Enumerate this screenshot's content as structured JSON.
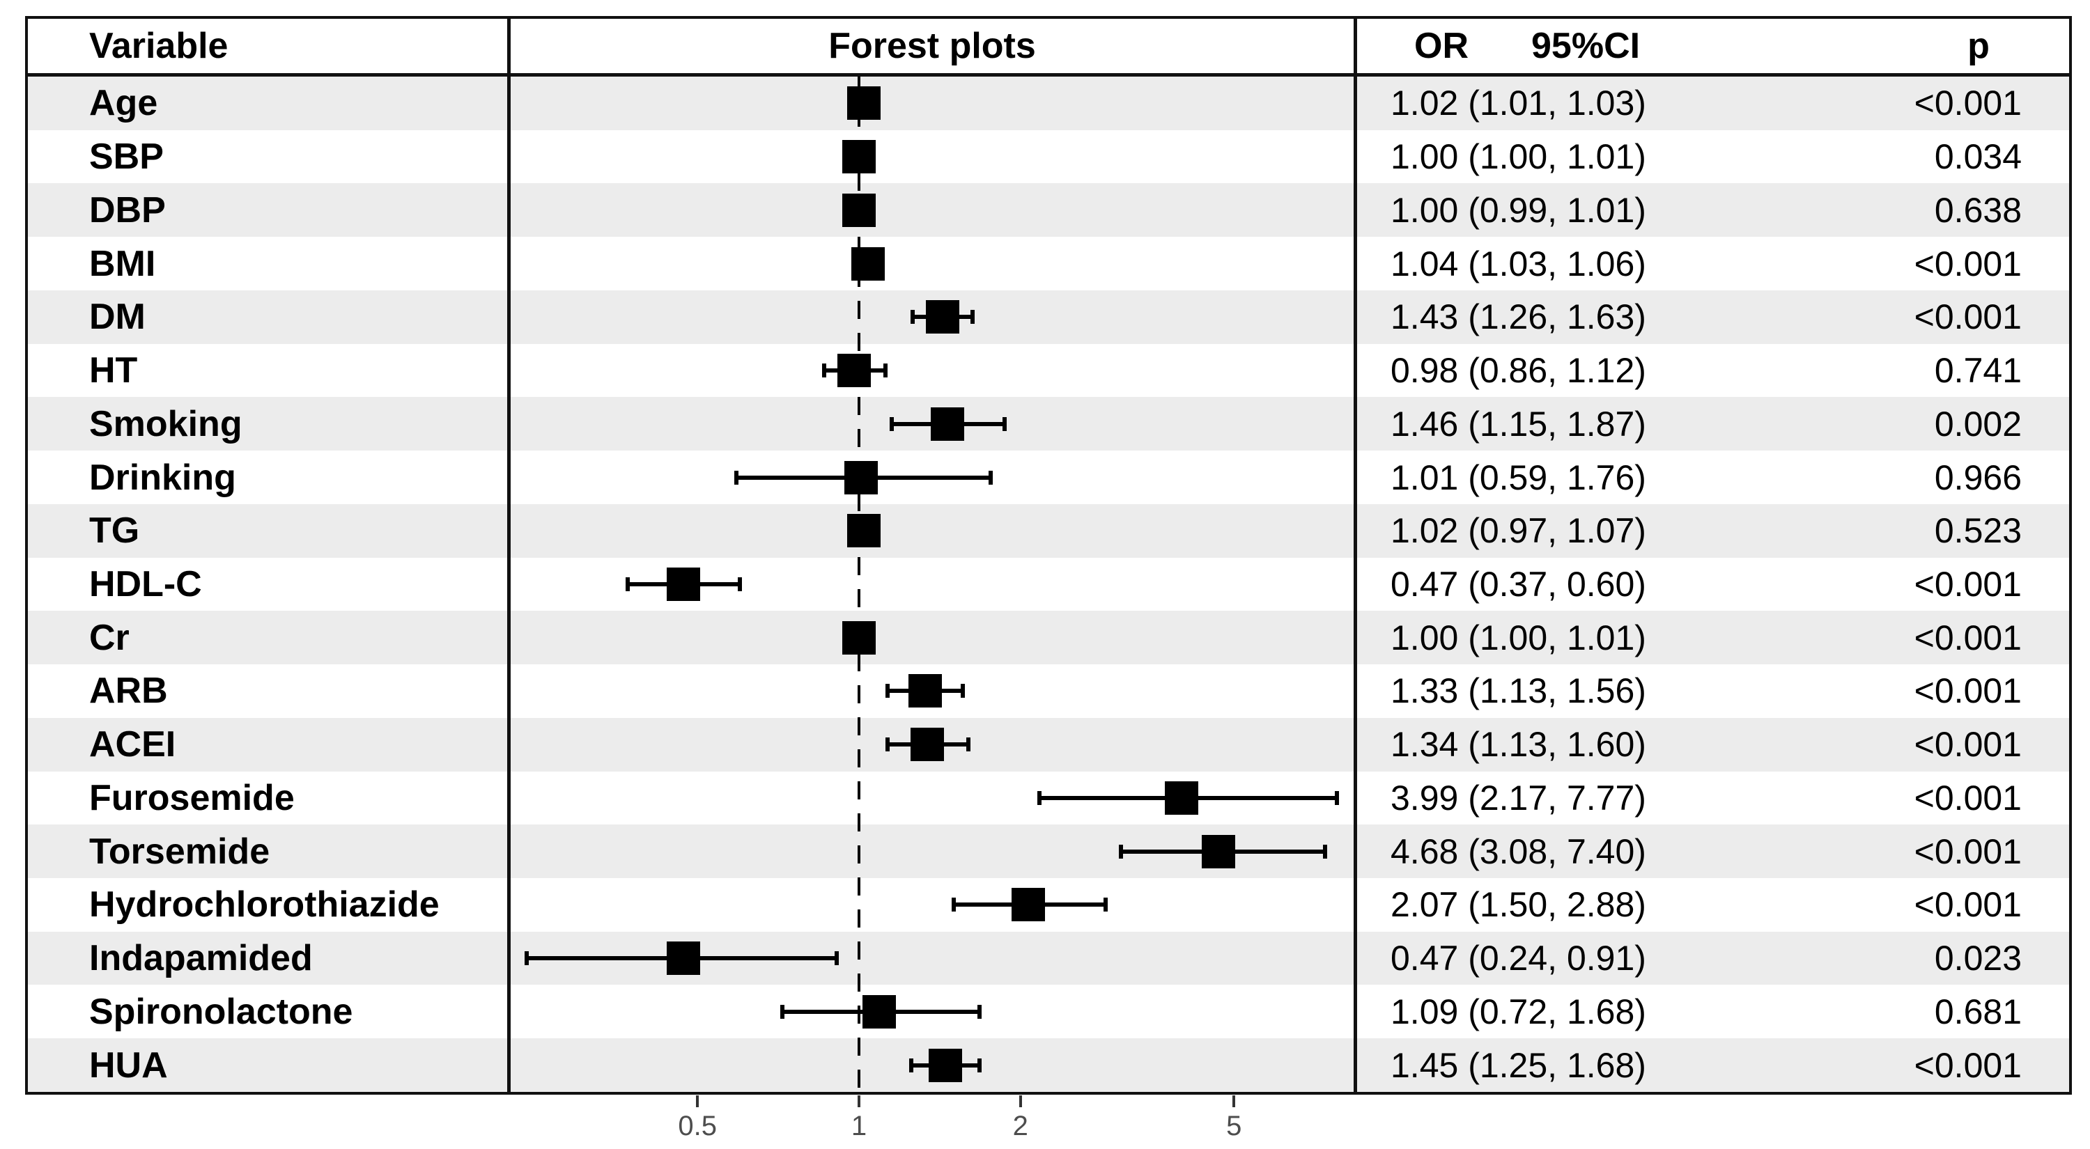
{
  "table": {
    "headers": {
      "variable": "Variable",
      "forest": "Forest plots",
      "or": "OR",
      "ci": "95%CI",
      "p": "p"
    }
  },
  "chart_data": {
    "type": "scatter",
    "subtype": "forest-plot",
    "title": "Forest plots",
    "x_scale": "log10",
    "x_ticks": [
      "0.5",
      "1",
      "2",
      "5"
    ],
    "x_range": [
      0.22,
      9.5
    ],
    "reference_line": 1,
    "legend": "none",
    "rows": [
      {
        "variable": "Age",
        "or": 1.02,
        "ci_low": 1.01,
        "ci_high": 1.03,
        "or_ci": "1.02 (1.01, 1.03)",
        "p": "<0.001"
      },
      {
        "variable": "SBP",
        "or": 1.0,
        "ci_low": 1.0,
        "ci_high": 1.01,
        "or_ci": "1.00 (1.00, 1.01)",
        "p": "0.034"
      },
      {
        "variable": "DBP",
        "or": 1.0,
        "ci_low": 0.99,
        "ci_high": 1.01,
        "or_ci": "1.00 (0.99, 1.01)",
        "p": "0.638"
      },
      {
        "variable": "BMI",
        "or": 1.04,
        "ci_low": 1.03,
        "ci_high": 1.06,
        "or_ci": "1.04 (1.03, 1.06)",
        "p": "<0.001"
      },
      {
        "variable": "DM",
        "or": 1.43,
        "ci_low": 1.26,
        "ci_high": 1.63,
        "or_ci": "1.43 (1.26, 1.63)",
        "p": "<0.001"
      },
      {
        "variable": "HT",
        "or": 0.98,
        "ci_low": 0.86,
        "ci_high": 1.12,
        "or_ci": "0.98 (0.86, 1.12)",
        "p": "0.741"
      },
      {
        "variable": "Smoking",
        "or": 1.46,
        "ci_low": 1.15,
        "ci_high": 1.87,
        "or_ci": "1.46 (1.15, 1.87)",
        "p": "0.002"
      },
      {
        "variable": "Drinking",
        "or": 1.01,
        "ci_low": 0.59,
        "ci_high": 1.76,
        "or_ci": "1.01 (0.59, 1.76)",
        "p": "0.966"
      },
      {
        "variable": "TG",
        "or": 1.02,
        "ci_low": 0.97,
        "ci_high": 1.07,
        "or_ci": "1.02 (0.97, 1.07)",
        "p": "0.523"
      },
      {
        "variable": "HDL-C",
        "or": 0.47,
        "ci_low": 0.37,
        "ci_high": 0.6,
        "or_ci": "0.47 (0.37, 0.60)",
        "p": "<0.001"
      },
      {
        "variable": "Cr",
        "or": 1.0,
        "ci_low": 1.0,
        "ci_high": 1.01,
        "or_ci": "1.00 (1.00, 1.01)",
        "p": "<0.001"
      },
      {
        "variable": "ARB",
        "or": 1.33,
        "ci_low": 1.13,
        "ci_high": 1.56,
        "or_ci": "1.33 (1.13, 1.56)",
        "p": "<0.001"
      },
      {
        "variable": "ACEI",
        "or": 1.34,
        "ci_low": 1.13,
        "ci_high": 1.6,
        "or_ci": "1.34 (1.13, 1.60)",
        "p": "<0.001"
      },
      {
        "variable": "Furosemide",
        "or": 3.99,
        "ci_low": 2.17,
        "ci_high": 7.77,
        "or_ci": "3.99 (2.17, 7.77)",
        "p": "<0.001"
      },
      {
        "variable": "Torsemide",
        "or": 4.68,
        "ci_low": 3.08,
        "ci_high": 7.4,
        "or_ci": "4.68 (3.08, 7.40)",
        "p": "<0.001"
      },
      {
        "variable": "Hydrochlorothiazide",
        "or": 2.07,
        "ci_low": 1.5,
        "ci_high": 2.88,
        "or_ci": "2.07 (1.50, 2.88)",
        "p": "<0.001"
      },
      {
        "variable": "Indapamided",
        "or": 0.47,
        "ci_low": 0.24,
        "ci_high": 0.91,
        "or_ci": "0.47 (0.24, 0.91)",
        "p": "0.023"
      },
      {
        "variable": "Spironolactone",
        "or": 1.09,
        "ci_low": 0.72,
        "ci_high": 1.68,
        "or_ci": "1.09 (0.72, 1.68)",
        "p": "0.681"
      },
      {
        "variable": "HUA",
        "or": 1.45,
        "ci_low": 1.25,
        "ci_high": 1.68,
        "or_ci": "1.45 (1.25, 1.68)",
        "p": "<0.001"
      }
    ]
  },
  "colors": {
    "stripe": "#ececec",
    "marker": "#000000",
    "border": "#111111",
    "axis_label": "#4d4d4d",
    "tick": "#333333"
  }
}
